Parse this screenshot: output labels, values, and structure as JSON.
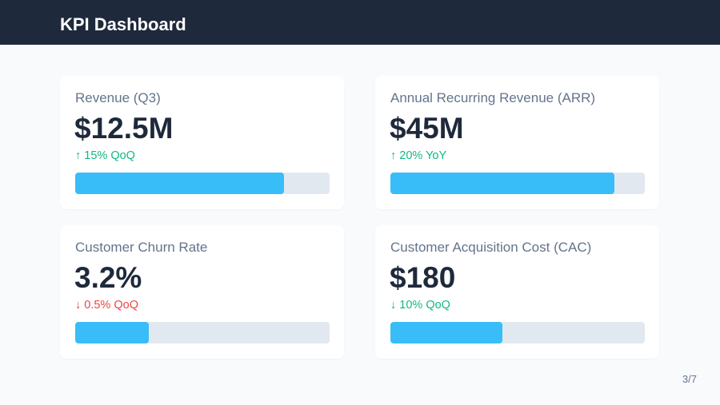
{
  "header": {
    "title": "KPI Dashboard"
  },
  "colors": {
    "header_bg": "#1e293b",
    "bar_fill": "#38bdf8",
    "bar_track": "#e2e8f0",
    "positive": "#10b981",
    "negative": "#ef4444"
  },
  "cards": [
    {
      "label": "Revenue (Q3)",
      "value": "$12.5M",
      "change": "↑ 15% QoQ",
      "change_color": "#10b981",
      "progress": 0.82
    },
    {
      "label": "Annual Recurring Revenue (ARR)",
      "value": "$45M",
      "change": "↑ 20% YoY",
      "change_color": "#10b981",
      "progress": 0.88
    },
    {
      "label": "Customer Churn Rate",
      "value": "3.2%",
      "change": "↓ 0.5% QoQ",
      "change_color": "#ef4444",
      "progress": 0.29
    },
    {
      "label": "Customer Acquisition Cost (CAC)",
      "value": "$180",
      "change": "↓ 10% QoQ",
      "change_color": "#10b981",
      "progress": 0.44
    }
  ],
  "page_indicator": "3/7"
}
